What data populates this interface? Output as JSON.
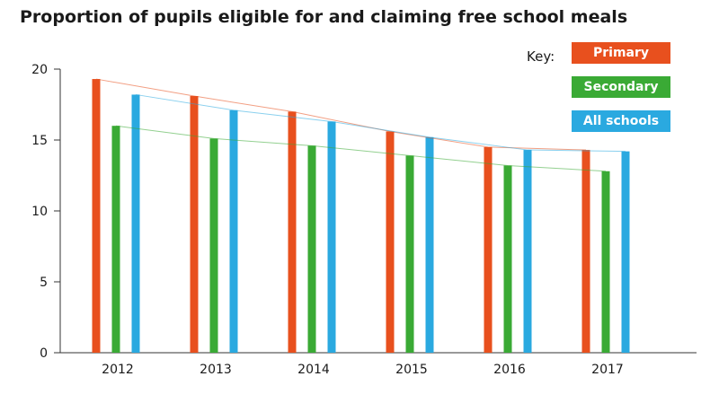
{
  "chart_data": {
    "type": "bar",
    "title": "Proportion of pupils eligible for and claiming free school meals",
    "categories": [
      "2012",
      "2013",
      "2014",
      "2015",
      "2016",
      "2017"
    ],
    "series": [
      {
        "name": "Primary",
        "color": "#e8501e",
        "values": [
          19.3,
          18.1,
          17.0,
          15.6,
          14.5,
          14.3
        ]
      },
      {
        "name": "Secondary",
        "color": "#3aaa35",
        "values": [
          16.0,
          15.1,
          14.6,
          13.9,
          13.2,
          12.8
        ]
      },
      {
        "name": "All schools",
        "color": "#2aa9e0",
        "values": [
          18.2,
          17.1,
          16.3,
          15.2,
          14.3,
          14.2
        ]
      }
    ],
    "yticks": [
      0,
      5,
      10,
      15,
      20
    ],
    "ylim": [
      0,
      20
    ],
    "legend_title": "Key:",
    "legend_position": "top-right",
    "trend_lines": true,
    "grid": false
  }
}
